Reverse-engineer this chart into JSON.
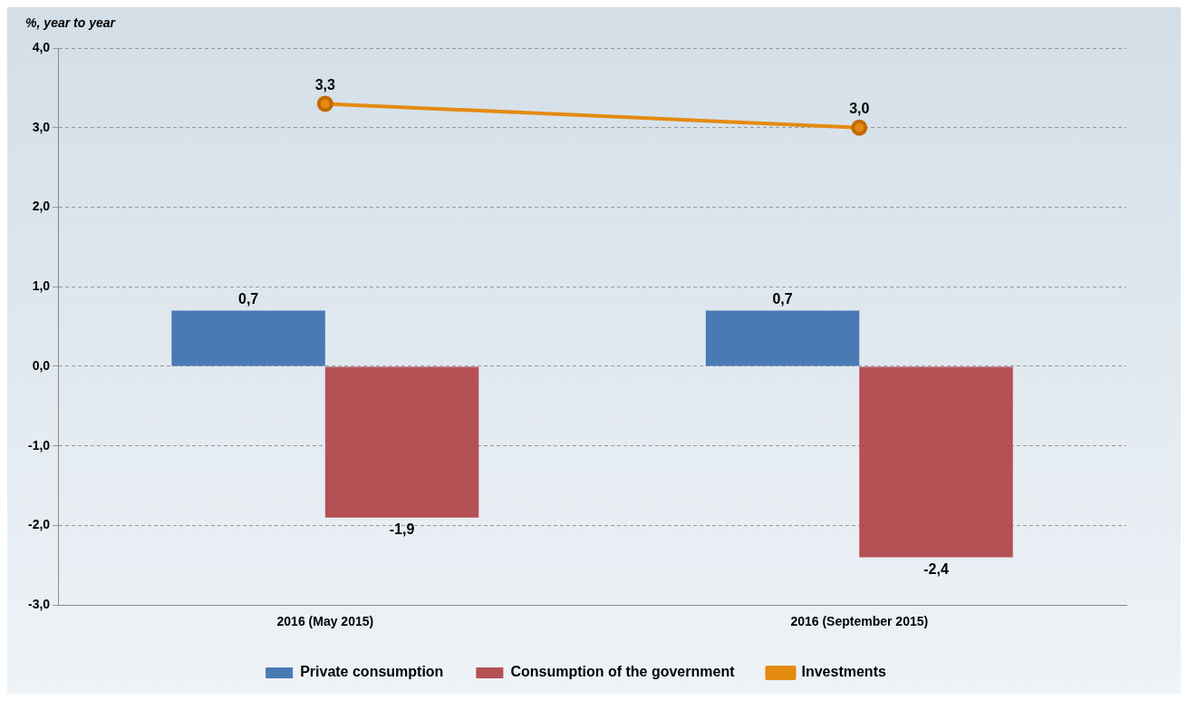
{
  "chart_data": {
    "type": "bar",
    "ylabel": "%, year to year",
    "categories": [
      "2016 (May 2015)",
      "2016 (September 2015)"
    ],
    "series": [
      {
        "name": "Private consumption",
        "color": "#4a7ab4",
        "values": [
          0.7,
          0.7
        ],
        "value_labels": [
          "0,7",
          "0,7"
        ]
      },
      {
        "name": "Consumption of the government",
        "color": "#b55055",
        "values": [
          -1.9,
          -2.4
        ],
        "value_labels": [
          "-1,9",
          "-2,4"
        ]
      },
      {
        "name": "Investments",
        "type": "line",
        "color": "#e48a10",
        "marker": "circle",
        "values": [
          3.3,
          3.0
        ],
        "value_labels": [
          "3,3",
          "3,0"
        ]
      }
    ],
    "ylim": [
      -3,
      4
    ],
    "yticks": [
      {
        "value": -3,
        "label": "-3,0"
      },
      {
        "value": -2,
        "label": "-2,0"
      },
      {
        "value": -1,
        "label": "-1,0"
      },
      {
        "value": 0,
        "label": "0,0"
      },
      {
        "value": 1,
        "label": "1,0"
      },
      {
        "value": 2,
        "label": "2,0"
      },
      {
        "value": 3,
        "label": "3,0"
      },
      {
        "value": 4,
        "label": "4,0"
      }
    ],
    "grid": "y",
    "legend": "bottom"
  }
}
